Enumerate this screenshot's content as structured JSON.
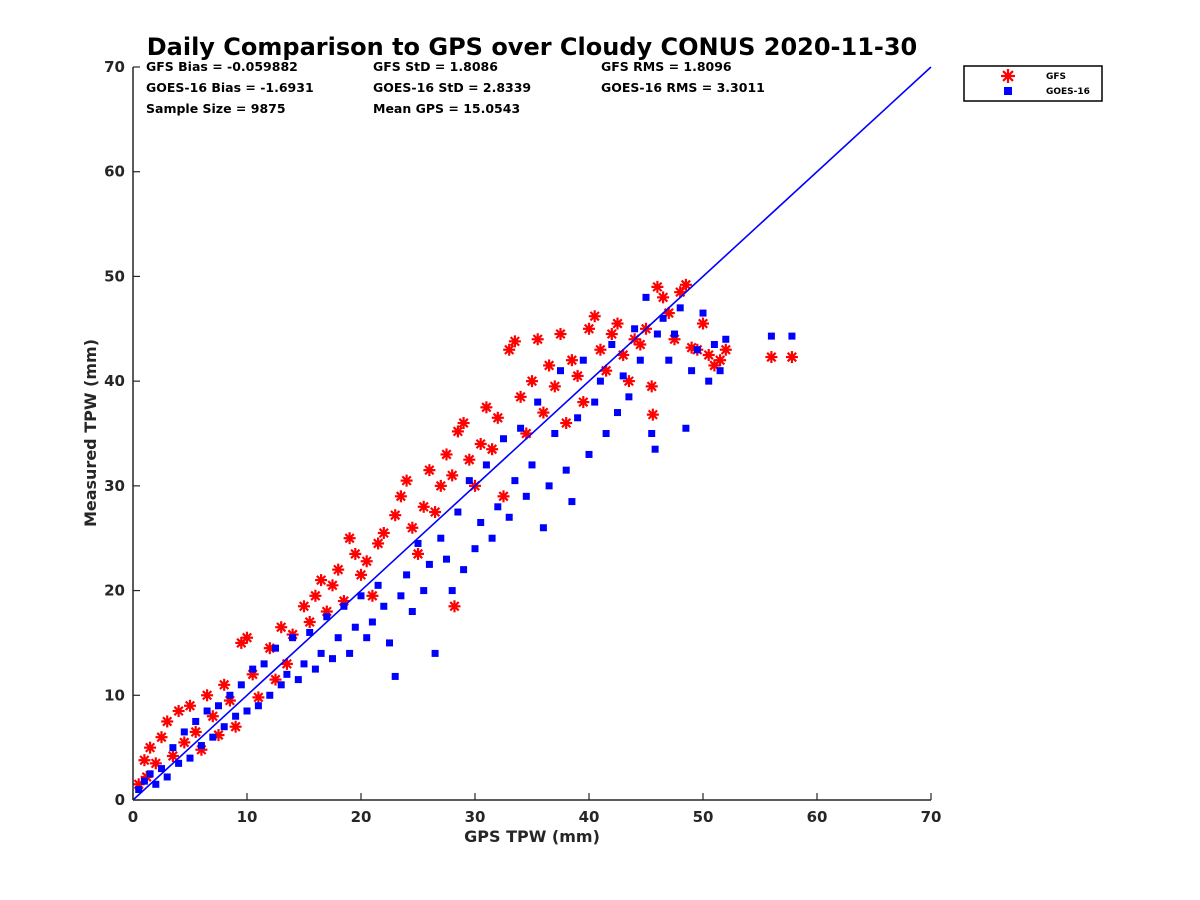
{
  "chart_data": {
    "type": "scatter",
    "title": "Daily Comparison to GPS over Cloudy CONUS 2020-11-30",
    "xlabel": "GPS TPW (mm)",
    "ylabel": "Measured TPW (mm)",
    "xlim": [
      0,
      70
    ],
    "ylim": [
      0,
      70
    ],
    "x_ticks": [
      "0",
      "10",
      "20",
      "30",
      "40",
      "50",
      "60",
      "70"
    ],
    "y_ticks": [
      "0",
      "10",
      "20",
      "30",
      "40",
      "50",
      "60",
      "70"
    ],
    "grid": false,
    "legend_position": "outside-top-right",
    "stats": [
      [
        "GFS Bias = -0.059882",
        "GFS StD = 1.8086",
        "GFS RMS = 1.8096"
      ],
      [
        "GOES-16 Bias = -1.6931",
        "GOES-16 StD = 2.8339",
        "GOES-16 RMS = 3.3011"
      ],
      [
        "Sample Size = 9875",
        "Mean GPS = 15.0543",
        ""
      ]
    ],
    "reference_line": {
      "x": [
        0,
        70
      ],
      "y": [
        0,
        70
      ],
      "color": "#0000ff"
    },
    "series": [
      {
        "name": "GFS",
        "marker": "asterisk",
        "color": "#ff0000",
        "points": [
          [
            0.5,
            1.5
          ],
          [
            1.0,
            3.8
          ],
          [
            1.2,
            2.2
          ],
          [
            1.5,
            5.0
          ],
          [
            2.0,
            3.5
          ],
          [
            2.5,
            6.0
          ],
          [
            3.0,
            7.5
          ],
          [
            3.5,
            4.2
          ],
          [
            4.0,
            8.5
          ],
          [
            4.5,
            5.5
          ],
          [
            5.0,
            9.0
          ],
          [
            5.5,
            6.5
          ],
          [
            6.0,
            4.8
          ],
          [
            6.5,
            10.0
          ],
          [
            7.0,
            8.0
          ],
          [
            7.5,
            6.2
          ],
          [
            8.0,
            11.0
          ],
          [
            8.5,
            9.5
          ],
          [
            9.0,
            7.0
          ],
          [
            9.5,
            15.0
          ],
          [
            10.0,
            15.5
          ],
          [
            10.5,
            12.0
          ],
          [
            11.0,
            9.8
          ],
          [
            12.0,
            14.5
          ],
          [
            12.5,
            11.5
          ],
          [
            13.0,
            16.5
          ],
          [
            13.5,
            13.0
          ],
          [
            14.0,
            15.8
          ],
          [
            15.0,
            18.5
          ],
          [
            15.5,
            17.0
          ],
          [
            16.0,
            19.5
          ],
          [
            16.5,
            21.0
          ],
          [
            17.0,
            18.0
          ],
          [
            17.5,
            20.5
          ],
          [
            18.0,
            22.0
          ],
          [
            18.5,
            19.0
          ],
          [
            19.0,
            25.0
          ],
          [
            19.5,
            23.5
          ],
          [
            20.0,
            21.5
          ],
          [
            20.5,
            22.8
          ],
          [
            21.0,
            19.5
          ],
          [
            21.5,
            24.5
          ],
          [
            22.0,
            25.5
          ],
          [
            23.0,
            27.2
          ],
          [
            23.5,
            29.0
          ],
          [
            24.0,
            30.5
          ],
          [
            24.5,
            26.0
          ],
          [
            25.0,
            23.5
          ],
          [
            25.5,
            28.0
          ],
          [
            26.0,
            31.5
          ],
          [
            26.5,
            27.5
          ],
          [
            27.0,
            30.0
          ],
          [
            27.5,
            33.0
          ],
          [
            28.0,
            31.0
          ],
          [
            28.2,
            18.5
          ],
          [
            28.5,
            35.2
          ],
          [
            29.0,
            36.0
          ],
          [
            29.5,
            32.5
          ],
          [
            30.0,
            30.0
          ],
          [
            30.5,
            34.0
          ],
          [
            31.0,
            37.5
          ],
          [
            31.5,
            33.5
          ],
          [
            32.0,
            36.5
          ],
          [
            32.5,
            29.0
          ],
          [
            33.0,
            43.0
          ],
          [
            33.5,
            43.8
          ],
          [
            34.0,
            38.5
          ],
          [
            34.5,
            35.0
          ],
          [
            35.0,
            40.0
          ],
          [
            35.5,
            44.0
          ],
          [
            36.0,
            37.0
          ],
          [
            36.5,
            41.5
          ],
          [
            37.0,
            39.5
          ],
          [
            37.5,
            44.5
          ],
          [
            38.0,
            36.0
          ],
          [
            38.5,
            42.0
          ],
          [
            39.0,
            40.5
          ],
          [
            39.5,
            38.0
          ],
          [
            40.0,
            45.0
          ],
          [
            40.5,
            46.2
          ],
          [
            41.0,
            43.0
          ],
          [
            41.5,
            41.0
          ],
          [
            42.0,
            44.5
          ],
          [
            42.5,
            45.5
          ],
          [
            43.0,
            42.5
          ],
          [
            43.5,
            40.0
          ],
          [
            44.0,
            44.0
          ],
          [
            44.5,
            43.5
          ],
          [
            45.0,
            45.0
          ],
          [
            45.5,
            39.5
          ],
          [
            45.6,
            36.8
          ],
          [
            46.0,
            49.0
          ],
          [
            46.5,
            48.0
          ],
          [
            47.0,
            46.5
          ],
          [
            47.5,
            44.0
          ],
          [
            48.0,
            48.5
          ],
          [
            48.5,
            49.2
          ],
          [
            49.0,
            43.2
          ],
          [
            49.5,
            43.0
          ],
          [
            50.0,
            45.5
          ],
          [
            50.5,
            42.5
          ],
          [
            51.0,
            41.5
          ],
          [
            51.5,
            42.0
          ],
          [
            52.0,
            43.0
          ],
          [
            56.0,
            42.3
          ],
          [
            57.8,
            42.3
          ]
        ]
      },
      {
        "name": "GOES-16",
        "marker": "square",
        "color": "#0000ff",
        "points": [
          [
            0.5,
            1.0
          ],
          [
            1.0,
            1.8
          ],
          [
            1.5,
            2.5
          ],
          [
            2.0,
            1.5
          ],
          [
            2.5,
            3.0
          ],
          [
            3.0,
            2.2
          ],
          [
            3.5,
            5.0
          ],
          [
            4.0,
            3.5
          ],
          [
            4.5,
            6.5
          ],
          [
            5.0,
            4.0
          ],
          [
            5.5,
            7.5
          ],
          [
            6.0,
            5.2
          ],
          [
            6.5,
            8.5
          ],
          [
            7.0,
            6.0
          ],
          [
            7.5,
            9.0
          ],
          [
            8.0,
            7.0
          ],
          [
            8.5,
            10.0
          ],
          [
            9.0,
            8.0
          ],
          [
            9.5,
            11.0
          ],
          [
            10.0,
            8.5
          ],
          [
            10.5,
            12.5
          ],
          [
            11.0,
            9.0
          ],
          [
            11.5,
            13.0
          ],
          [
            12.0,
            10.0
          ],
          [
            12.5,
            14.5
          ],
          [
            13.0,
            11.0
          ],
          [
            13.5,
            12.0
          ],
          [
            14.0,
            15.5
          ],
          [
            14.5,
            11.5
          ],
          [
            15.0,
            13.0
          ],
          [
            15.5,
            16.0
          ],
          [
            16.0,
            12.5
          ],
          [
            16.5,
            14.0
          ],
          [
            17.0,
            17.5
          ],
          [
            17.5,
            13.5
          ],
          [
            18.0,
            15.5
          ],
          [
            18.5,
            18.5
          ],
          [
            19.0,
            14.0
          ],
          [
            19.5,
            16.5
          ],
          [
            20.0,
            19.5
          ],
          [
            20.5,
            15.5
          ],
          [
            21.0,
            17.0
          ],
          [
            21.5,
            20.5
          ],
          [
            22.0,
            18.5
          ],
          [
            22.5,
            15.0
          ],
          [
            23.0,
            11.8
          ],
          [
            23.5,
            19.5
          ],
          [
            24.0,
            21.5
          ],
          [
            24.5,
            18.0
          ],
          [
            25.0,
            24.5
          ],
          [
            25.5,
            20.0
          ],
          [
            26.0,
            22.5
          ],
          [
            26.5,
            14.0
          ],
          [
            27.0,
            25.0
          ],
          [
            27.5,
            23.0
          ],
          [
            28.0,
            20.0
          ],
          [
            28.5,
            27.5
          ],
          [
            29.0,
            22.0
          ],
          [
            29.5,
            30.5
          ],
          [
            30.0,
            24.0
          ],
          [
            30.5,
            26.5
          ],
          [
            31.0,
            32.0
          ],
          [
            31.5,
            25.0
          ],
          [
            32.0,
            28.0
          ],
          [
            32.5,
            34.5
          ],
          [
            33.0,
            27.0
          ],
          [
            33.5,
            30.5
          ],
          [
            34.0,
            35.5
          ],
          [
            34.5,
            29.0
          ],
          [
            35.0,
            32.0
          ],
          [
            35.5,
            38.0
          ],
          [
            36.0,
            26.0
          ],
          [
            36.5,
            30.0
          ],
          [
            37.0,
            35.0
          ],
          [
            37.5,
            41.0
          ],
          [
            38.0,
            31.5
          ],
          [
            38.5,
            28.5
          ],
          [
            39.0,
            36.5
          ],
          [
            39.5,
            42.0
          ],
          [
            40.0,
            33.0
          ],
          [
            40.5,
            38.0
          ],
          [
            41.0,
            40.0
          ],
          [
            41.5,
            35.0
          ],
          [
            42.0,
            43.5
          ],
          [
            42.5,
            37.0
          ],
          [
            43.0,
            40.5
          ],
          [
            43.5,
            38.5
          ],
          [
            44.0,
            45.0
          ],
          [
            44.5,
            42.0
          ],
          [
            45.0,
            48.0
          ],
          [
            45.5,
            35.0
          ],
          [
            45.8,
            33.5
          ],
          [
            46.0,
            44.5
          ],
          [
            46.5,
            46.0
          ],
          [
            47.0,
            42.0
          ],
          [
            47.5,
            44.5
          ],
          [
            48.0,
            47.0
          ],
          [
            48.5,
            35.5
          ],
          [
            49.0,
            41.0
          ],
          [
            49.5,
            43.0
          ],
          [
            50.0,
            46.5
          ],
          [
            50.5,
            40.0
          ],
          [
            51.0,
            43.5
          ],
          [
            51.5,
            41.0
          ],
          [
            52.0,
            44.0
          ],
          [
            56.0,
            44.3
          ],
          [
            57.8,
            44.3
          ]
        ]
      }
    ]
  }
}
